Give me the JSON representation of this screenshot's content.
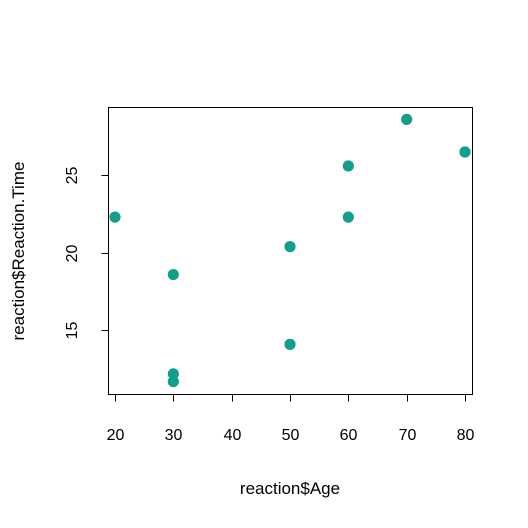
{
  "chart_data": {
    "type": "scatter",
    "title": "",
    "xlabel": "reaction$Age",
    "ylabel": "reaction$Reaction.Time",
    "xlim": [
      18.8,
      81.2
    ],
    "ylim": [
      10.9,
      29.4
    ],
    "x_ticks": [
      20,
      30,
      40,
      50,
      60,
      70,
      80
    ],
    "y_ticks": [
      15,
      20,
      25
    ],
    "grid": false,
    "legend": "none",
    "point_color": "#139E8A",
    "series": [
      {
        "x": [
          20,
          30,
          30,
          30,
          50,
          50,
          60,
          60,
          70,
          80
        ],
        "y": [
          22.3,
          18.6,
          12.2,
          11.7,
          20.4,
          14.1,
          25.6,
          22.3,
          28.6,
          26.5
        ]
      }
    ]
  }
}
